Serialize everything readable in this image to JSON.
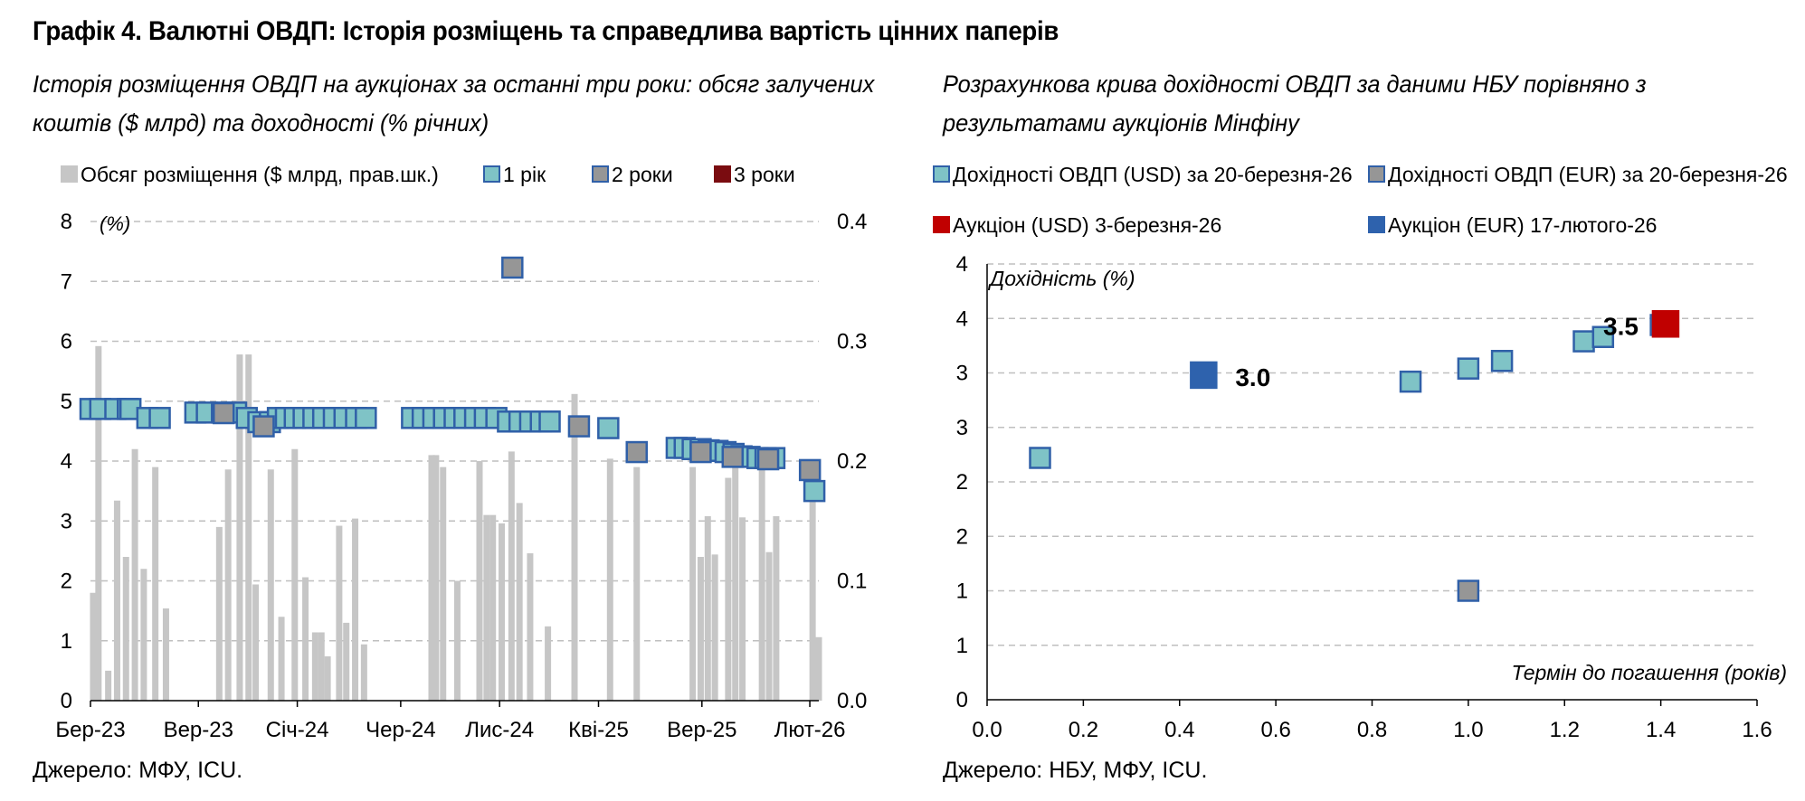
{
  "title": "Графік 4. Валютні ОВДП: Історія розміщень та справедлива вартість цінних паперів",
  "left_panel": {
    "subtitle_line1": "Історія розміщення ОВДП на аукціонах за останні три роки: обсяг залучених",
    "subtitle_line2": "коштів ($ млрд) та доходності (% річних)",
    "source": "Джерело: МФУ, ICU."
  },
  "right_panel": {
    "subtitle_line1": "Розрахункова крива дохідності ОВДП за даними НБУ порівняно з",
    "subtitle_line2": "результатами аукціонів Мінфіну",
    "source": "Джерело: НБУ, МФУ, ICU."
  },
  "colors": {
    "bar": "#c6c6c6",
    "teal": "#7fc3c6",
    "gray_marker": "#969696",
    "dark_red": "#7a0c10",
    "red": "#c00000",
    "blue": "#2e62ad",
    "border": "#3060a8",
    "grid": "#bfbfbf"
  },
  "chart_data": [
    {
      "type": "bar+scatter",
      "unit_label": "(%)",
      "left_axis": {
        "ylim": [
          0,
          8
        ],
        "ticks": [
          "0",
          "1",
          "2",
          "3",
          "4",
          "5",
          "6",
          "7",
          "8"
        ]
      },
      "right_axis": {
        "ylim": [
          0,
          0.4
        ],
        "ticks": [
          "0.0",
          "0.1",
          "0.2",
          "0.3",
          "0.4"
        ]
      },
      "x_ticks": [
        "Бер-23",
        "Вер-23",
        "Січ-24",
        "Чер-24",
        "Лис-24",
        "Кві-25",
        "Вер-25",
        "Лют-26"
      ],
      "grid": true,
      "legend": [
        {
          "label": "Обсяг розміщення ($ млрд, прав.шк.)",
          "kind": "bar"
        },
        {
          "label": "1 рік",
          "kind": "teal"
        },
        {
          "label": "2 роки",
          "kind": "gray"
        },
        {
          "label": "3 роки",
          "kind": "darkred"
        }
      ],
      "bars": [
        {
          "x": 0.3,
          "v": 0.09
        },
        {
          "x": 0.9,
          "v": 0.296
        },
        {
          "x": 2.0,
          "v": 0.025
        },
        {
          "x": 3.0,
          "v": 0.167
        },
        {
          "x": 4.0,
          "v": 0.12
        },
        {
          "x": 5.0,
          "v": 0.21
        },
        {
          "x": 6.0,
          "v": 0.11
        },
        {
          "x": 7.3,
          "v": 0.195
        },
        {
          "x": 8.5,
          "v": 0.077
        },
        {
          "x": 14.5,
          "v": 0.145
        },
        {
          "x": 15.5,
          "v": 0.193
        },
        {
          "x": 16.8,
          "v": 0.289
        },
        {
          "x": 17.8,
          "v": 0.289
        },
        {
          "x": 18.6,
          "v": 0.097
        },
        {
          "x": 20.3,
          "v": 0.193
        },
        {
          "x": 21.5,
          "v": 0.07
        },
        {
          "x": 23.0,
          "v": 0.21
        },
        {
          "x": 24.2,
          "v": 0.103
        },
        {
          "x": 25.3,
          "v": 0.057
        },
        {
          "x": 26.0,
          "v": 0.057
        },
        {
          "x": 26.7,
          "v": 0.037
        },
        {
          "x": 28.0,
          "v": 0.146
        },
        {
          "x": 28.8,
          "v": 0.065
        },
        {
          "x": 29.8,
          "v": 0.152
        },
        {
          "x": 30.8,
          "v": 0.047
        },
        {
          "x": 38.4,
          "v": 0.205
        },
        {
          "x": 38.9,
          "v": 0.205
        },
        {
          "x": 39.7,
          "v": 0.195
        },
        {
          "x": 41.3,
          "v": 0.1
        },
        {
          "x": 43.8,
          "v": 0.2
        },
        {
          "x": 44.6,
          "v": 0.155
        },
        {
          "x": 45.3,
          "v": 0.155
        },
        {
          "x": 46.3,
          "v": 0.148
        },
        {
          "x": 47.4,
          "v": 0.208
        },
        {
          "x": 48.3,
          "v": 0.165
        },
        {
          "x": 49.5,
          "v": 0.123
        },
        {
          "x": 51.5,
          "v": 0.062
        },
        {
          "x": 54.5,
          "v": 0.256
        },
        {
          "x": 58.5,
          "v": 0.202
        },
        {
          "x": 61.5,
          "v": 0.195
        },
        {
          "x": 67.8,
          "v": 0.195
        },
        {
          "x": 68.7,
          "v": 0.12
        },
        {
          "x": 69.5,
          "v": 0.154
        },
        {
          "x": 70.3,
          "v": 0.122
        },
        {
          "x": 71.8,
          "v": 0.186
        },
        {
          "x": 72.6,
          "v": 0.195
        },
        {
          "x": 73.4,
          "v": 0.153
        },
        {
          "x": 75.6,
          "v": 0.2
        },
        {
          "x": 76.4,
          "v": 0.124
        },
        {
          "x": 77.2,
          "v": 0.154
        },
        {
          "x": 81.3,
          "v": 0.18
        },
        {
          "x": 82.0,
          "v": 0.053
        }
      ],
      "points": [
        {
          "x": 0.0,
          "y": 4.87,
          "s": "teal"
        },
        {
          "x": 1.1,
          "y": 4.87,
          "s": "teal"
        },
        {
          "x": 2.8,
          "y": 4.87,
          "s": "teal"
        },
        {
          "x": 4.2,
          "y": 4.87,
          "s": "teal"
        },
        {
          "x": 4.5,
          "y": 4.87,
          "s": "teal"
        },
        {
          "x": 6.4,
          "y": 4.72,
          "s": "teal"
        },
        {
          "x": 7.8,
          "y": 4.72,
          "s": "teal"
        },
        {
          "x": 11.8,
          "y": 4.81,
          "s": "teal"
        },
        {
          "x": 13.1,
          "y": 4.81,
          "s": "teal"
        },
        {
          "x": 14.8,
          "y": 4.81,
          "s": "teal"
        },
        {
          "x": 16.4,
          "y": 4.81,
          "s": "teal"
        },
        {
          "x": 17.6,
          "y": 4.72,
          "s": "teal"
        },
        {
          "x": 18.9,
          "y": 4.65,
          "s": "teal"
        },
        {
          "x": 20.2,
          "y": 4.65,
          "s": "teal"
        },
        {
          "x": 21.1,
          "y": 4.72,
          "s": "teal"
        },
        {
          "x": 22.0,
          "y": 4.72,
          "s": "teal"
        },
        {
          "x": 23.0,
          "y": 4.72,
          "s": "teal"
        },
        {
          "x": 24.0,
          "y": 4.72,
          "s": "teal"
        },
        {
          "x": 25.1,
          "y": 4.72,
          "s": "teal"
        },
        {
          "x": 26.2,
          "y": 4.72,
          "s": "teal"
        },
        {
          "x": 27.4,
          "y": 4.72,
          "s": "teal"
        },
        {
          "x": 28.6,
          "y": 4.72,
          "s": "teal"
        },
        {
          "x": 29.9,
          "y": 4.72,
          "s": "teal"
        },
        {
          "x": 31.0,
          "y": 4.72,
          "s": "teal"
        },
        {
          "x": 36.2,
          "y": 4.72,
          "s": "teal"
        },
        {
          "x": 37.4,
          "y": 4.72,
          "s": "teal"
        },
        {
          "x": 38.6,
          "y": 4.72,
          "s": "teal"
        },
        {
          "x": 39.8,
          "y": 4.72,
          "s": "teal"
        },
        {
          "x": 41.0,
          "y": 4.72,
          "s": "teal"
        },
        {
          "x": 42.1,
          "y": 4.72,
          "s": "teal"
        },
        {
          "x": 43.3,
          "y": 4.72,
          "s": "teal"
        },
        {
          "x": 44.4,
          "y": 4.72,
          "s": "teal"
        },
        {
          "x": 45.7,
          "y": 4.72,
          "s": "teal"
        },
        {
          "x": 47.0,
          "y": 4.66,
          "s": "teal"
        },
        {
          "x": 48.3,
          "y": 4.66,
          "s": "teal"
        },
        {
          "x": 49.5,
          "y": 4.66,
          "s": "teal"
        },
        {
          "x": 50.7,
          "y": 4.66,
          "s": "teal"
        },
        {
          "x": 51.7,
          "y": 4.66,
          "s": "teal"
        },
        {
          "x": 58.3,
          "y": 4.55,
          "s": "teal"
        },
        {
          "x": 66.0,
          "y": 4.22,
          "s": "teal"
        },
        {
          "x": 66.9,
          "y": 4.22,
          "s": "teal"
        },
        {
          "x": 67.8,
          "y": 4.2,
          "s": "teal"
        },
        {
          "x": 68.7,
          "y": 4.2,
          "s": "teal"
        },
        {
          "x": 69.6,
          "y": 4.18,
          "s": "teal"
        },
        {
          "x": 70.6,
          "y": 4.17,
          "s": "teal"
        },
        {
          "x": 71.5,
          "y": 4.15,
          "s": "teal"
        },
        {
          "x": 72.4,
          "y": 4.12,
          "s": "teal"
        },
        {
          "x": 73.3,
          "y": 4.08,
          "s": "teal"
        },
        {
          "x": 74.2,
          "y": 4.07,
          "s": "teal"
        },
        {
          "x": 75.1,
          "y": 4.05,
          "s": "teal"
        },
        {
          "x": 76.0,
          "y": 4.05,
          "s": "teal"
        },
        {
          "x": 77.0,
          "y": 4.05,
          "s": "teal"
        },
        {
          "x": 81.5,
          "y": 3.5,
          "s": "teal"
        },
        {
          "x": 15.0,
          "y": 4.8,
          "s": "gray"
        },
        {
          "x": 19.5,
          "y": 4.58,
          "s": "gray"
        },
        {
          "x": 47.5,
          "y": 7.23,
          "s": "gray"
        },
        {
          "x": 55.0,
          "y": 4.58,
          "s": "gray"
        },
        {
          "x": 61.5,
          "y": 4.15,
          "s": "gray"
        },
        {
          "x": 68.7,
          "y": 4.15,
          "s": "gray"
        },
        {
          "x": 72.3,
          "y": 4.07,
          "s": "gray"
        },
        {
          "x": 76.3,
          "y": 4.03,
          "s": "gray"
        },
        {
          "x": 81.0,
          "y": 3.85,
          "s": "gray"
        }
      ]
    },
    {
      "type": "scatter",
      "ylabel": "Дохідність (%)",
      "xlabel": "Термін до погашення (років)",
      "xlim": [
        0,
        1.6
      ],
      "x_ticks": [
        "0.0",
        "0.2",
        "0.4",
        "0.6",
        "0.8",
        "1.0",
        "1.2",
        "1.4",
        "1.6"
      ],
      "y_ticks": [
        "0",
        "1",
        "1",
        "2",
        "2",
        "3",
        "3",
        "4",
        "4"
      ],
      "grid": true,
      "legend": [
        {
          "label": "Дохідності ОВДП (USD) за 20-березня-26",
          "kind": "teal"
        },
        {
          "label": "Дохідності ОВДП (EUR) за 20-березня-26",
          "kind": "gray"
        },
        {
          "label": "Аукціон (USD) 3-березня-26",
          "kind": "red"
        },
        {
          "label": "Аукціон (EUR) 17-лютого-26",
          "kind": "blue"
        }
      ],
      "points": [
        {
          "x": 0.11,
          "y": 2.22,
          "s": "teal"
        },
        {
          "x": 0.88,
          "y": 2.92,
          "s": "teal"
        },
        {
          "x": 1.0,
          "y": 3.04,
          "s": "teal"
        },
        {
          "x": 1.07,
          "y": 3.11,
          "s": "teal"
        },
        {
          "x": 1.24,
          "y": 3.29,
          "s": "teal"
        },
        {
          "x": 1.28,
          "y": 3.33,
          "s": "teal"
        },
        {
          "x": 1.4,
          "y": 3.44,
          "s": "teal"
        },
        {
          "x": 1.0,
          "y": 1.0,
          "s": "gray"
        },
        {
          "x": 1.41,
          "y": 3.45,
          "s": "red"
        },
        {
          "x": 0.45,
          "y": 2.98,
          "s": "blue"
        }
      ],
      "annotations": [
        {
          "text": "3.0",
          "x": 0.45,
          "y": 2.98
        },
        {
          "text": "3.5",
          "x": 1.41,
          "y": 3.45
        }
      ]
    }
  ]
}
